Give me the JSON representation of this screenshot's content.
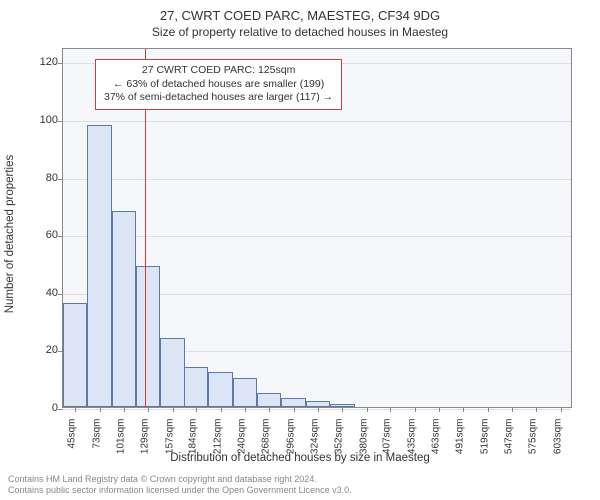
{
  "title": "27, CWRT COED PARC, MAESTEG, CF34 9DG",
  "subtitle": "Size of property relative to detached houses in Maesteg",
  "ylabel": "Number of detached properties",
  "xlabel": "Distribution of detached houses by size in Maesteg",
  "chart": {
    "type": "histogram",
    "background_color": "#f5f7fb",
    "border_color": "#888888",
    "bar_fill": "#dbe5f5",
    "bar_border": "#5b7aa8",
    "grid_color": "#dddde4",
    "marker_color": "#d43a3a",
    "marker_value": 125,
    "xlim": [
      31,
      617
    ],
    "ylim": [
      0,
      125
    ],
    "yticks": [
      0,
      20,
      40,
      60,
      80,
      100,
      120
    ],
    "xticks": [
      45,
      73,
      101,
      129,
      157,
      184,
      212,
      240,
      268,
      296,
      324,
      352,
      380,
      407,
      435,
      463,
      491,
      519,
      547,
      575,
      603
    ],
    "xtick_unit": "sqm",
    "bar_width_sqm": 28,
    "bars": [
      {
        "x": 45,
        "y": 36
      },
      {
        "x": 73,
        "y": 98
      },
      {
        "x": 101,
        "y": 68
      },
      {
        "x": 129,
        "y": 49
      },
      {
        "x": 157,
        "y": 24
      },
      {
        "x": 184,
        "y": 14
      },
      {
        "x": 212,
        "y": 12
      },
      {
        "x": 240,
        "y": 10
      },
      {
        "x": 268,
        "y": 5
      },
      {
        "x": 296,
        "y": 3
      },
      {
        "x": 324,
        "y": 2
      },
      {
        "x": 352,
        "y": 1
      },
      {
        "x": 380,
        "y": 0
      },
      {
        "x": 407,
        "y": 0
      },
      {
        "x": 435,
        "y": 0
      },
      {
        "x": 463,
        "y": 0
      },
      {
        "x": 491,
        "y": 0
      },
      {
        "x": 519,
        "y": 0
      },
      {
        "x": 547,
        "y": 0
      },
      {
        "x": 575,
        "y": 0
      },
      {
        "x": 603,
        "y": 0
      }
    ]
  },
  "info_box": {
    "line1": "27 CWRT COED PARC: 125sqm",
    "line2": "← 63% of detached houses are smaller (199)",
    "line3": "37% of semi-detached houses are larger (117) →",
    "border_color": "#d43a3a",
    "fontsize": 10.5
  },
  "footer": {
    "line1": "Contains HM Land Registry data © Crown copyright and database right 2024.",
    "line2": "Contains public sector information licensed under the Open Government Licence v3.0.",
    "color": "#888888",
    "fontsize": 9
  }
}
